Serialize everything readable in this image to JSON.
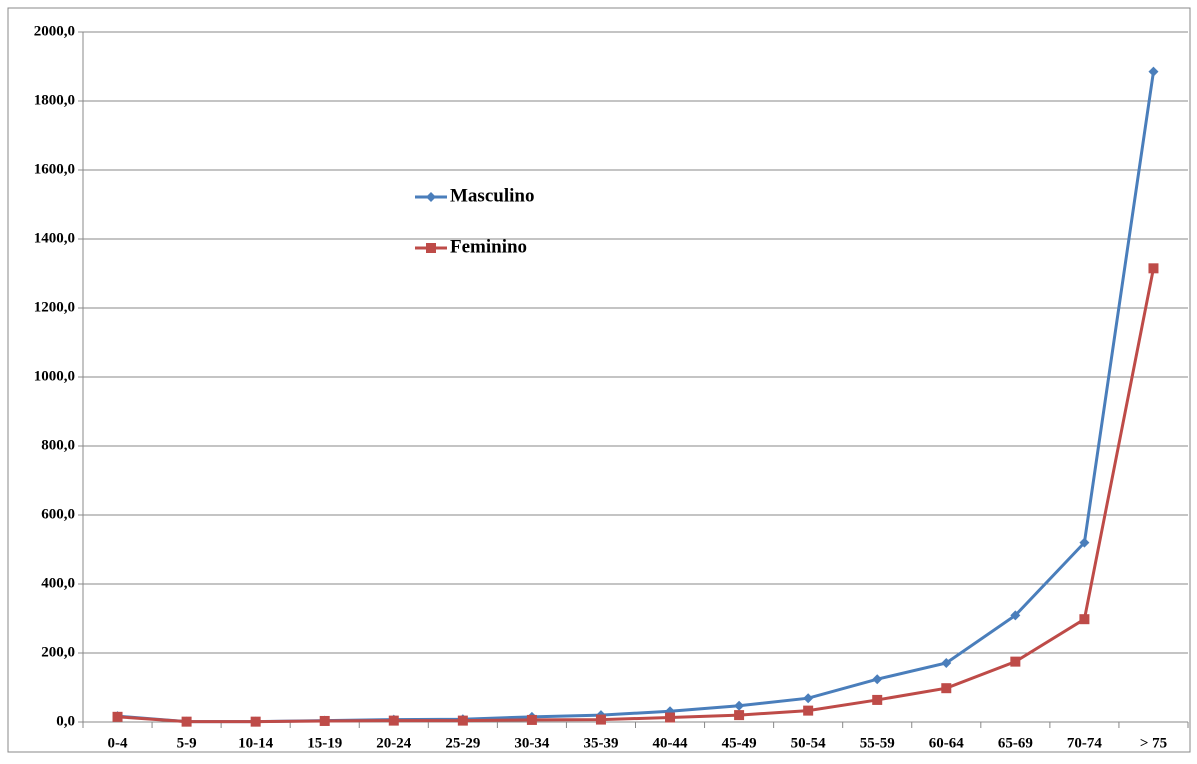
{
  "chart_data": {
    "type": "line",
    "categories": [
      "0-4",
      "5-9",
      "10-14",
      "15-19",
      "20-24",
      "25-29",
      "30-34",
      "35-39",
      "40-44",
      "45-49",
      "50-54",
      "55-59",
      "60-64",
      "65-69",
      "70-74",
      "> 75"
    ],
    "series": [
      {
        "name": "Masculino",
        "color": "#4a7ebb",
        "marker": "diamond",
        "values": [
          17,
          1,
          1,
          4,
          7,
          8,
          15,
          20,
          31,
          47,
          69,
          124,
          171,
          309,
          520,
          1885
        ]
      },
      {
        "name": "Feminino",
        "color": "#be4b48",
        "marker": "square",
        "values": [
          15,
          1,
          1,
          3,
          4,
          4,
          6,
          7,
          13,
          20,
          33,
          64,
          98,
          175,
          298,
          1315
        ]
      }
    ],
    "ylim": [
      0,
      2000
    ],
    "yticks": [
      {
        "value": 0,
        "label": "0,0"
      },
      {
        "value": 200,
        "label": "200,0"
      },
      {
        "value": 400,
        "label": "400,0"
      },
      {
        "value": 600,
        "label": "600,0"
      },
      {
        "value": 800,
        "label": "800,0"
      },
      {
        "value": 1000,
        "label": "1000,0"
      },
      {
        "value": 1200,
        "label": "1200,0"
      },
      {
        "value": 1400,
        "label": "1400,0"
      },
      {
        "value": 1600,
        "label": "1600,0"
      },
      {
        "value": 1800,
        "label": "1800,0"
      },
      {
        "value": 2000,
        "label": "2000,0"
      }
    ],
    "grid": true
  }
}
